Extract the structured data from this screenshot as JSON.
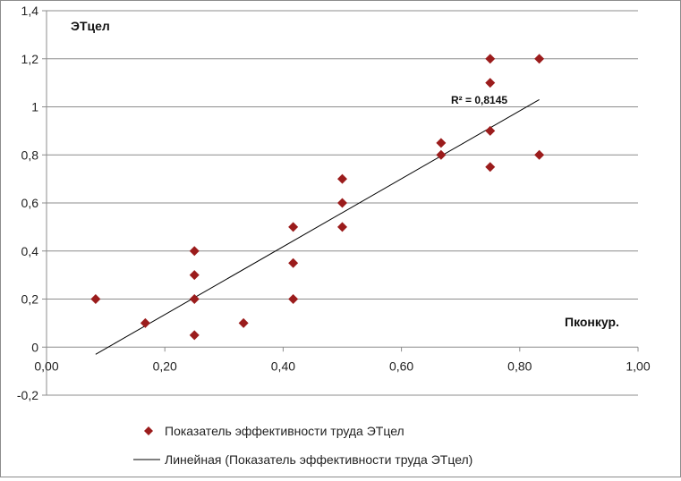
{
  "chart_data": {
    "type": "scatter",
    "xlim": [
      0.0,
      1.0
    ],
    "ylim": [
      -0.2,
      1.4
    ],
    "x_ticks": [
      "0,00",
      "0,20",
      "0,40",
      "0,60",
      "0,80",
      "1,00"
    ],
    "y_ticks": [
      "-0,2",
      "0",
      "0,2",
      "0,4",
      "0,6",
      "0,8",
      "1",
      "1,2",
      "1,4"
    ],
    "x_tick_values": [
      0.0,
      0.2,
      0.4,
      0.6,
      0.8,
      1.0
    ],
    "y_tick_values": [
      -0.2,
      0.0,
      0.2,
      0.4,
      0.6,
      0.8,
      1.0,
      1.2,
      1.4
    ],
    "xlabel": "Пконкур.",
    "ylabel": "ЭТцел",
    "grid": "horizontal",
    "legend_position": "bottom",
    "series": [
      {
        "name": "Показатель эффективности труда ЭТцел",
        "marker": "diamond",
        "color": "#9b1c1c",
        "points": [
          {
            "x": 0.083,
            "y": 0.2
          },
          {
            "x": 0.167,
            "y": 0.1
          },
          {
            "x": 0.25,
            "y": 0.4
          },
          {
            "x": 0.25,
            "y": 0.3
          },
          {
            "x": 0.25,
            "y": 0.2
          },
          {
            "x": 0.25,
            "y": 0.05
          },
          {
            "x": 0.333,
            "y": 0.1
          },
          {
            "x": 0.417,
            "y": 0.5
          },
          {
            "x": 0.417,
            "y": 0.35
          },
          {
            "x": 0.417,
            "y": 0.2
          },
          {
            "x": 0.5,
            "y": 0.7
          },
          {
            "x": 0.5,
            "y": 0.6
          },
          {
            "x": 0.5,
            "y": 0.5
          },
          {
            "x": 0.667,
            "y": 0.85
          },
          {
            "x": 0.667,
            "y": 0.8
          },
          {
            "x": 0.75,
            "y": 1.2
          },
          {
            "x": 0.75,
            "y": 1.1
          },
          {
            "x": 0.75,
            "y": 0.9
          },
          {
            "x": 0.75,
            "y": 0.75
          },
          {
            "x": 0.833,
            "y": 1.2
          },
          {
            "x": 0.833,
            "y": 0.8
          }
        ]
      }
    ],
    "trendline": {
      "name": "Линейная (Показатель эффективности труда ЭТцел)",
      "type": "linear",
      "color": "#000000",
      "start": {
        "x": 0.083,
        "y": -0.03
      },
      "end": {
        "x": 0.833,
        "y": 1.03
      },
      "r2_label": "R² = 0,8145"
    }
  }
}
